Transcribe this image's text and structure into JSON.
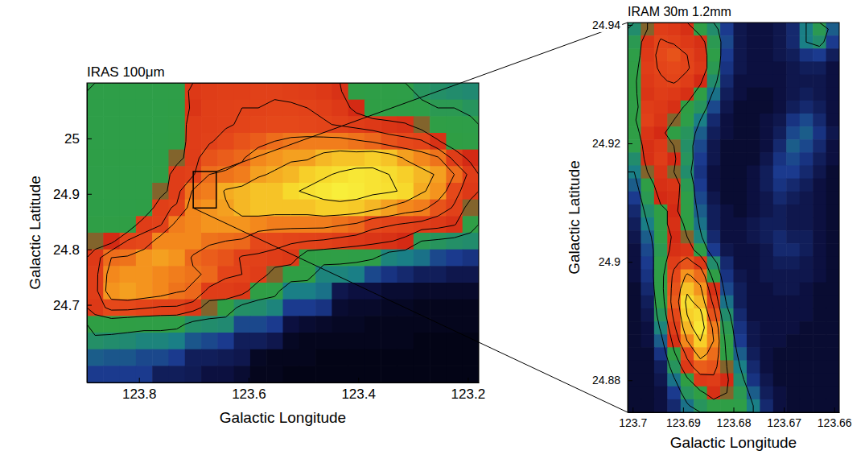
{
  "chart_data": [
    {
      "type": "heatmap",
      "title": "IRAS 100μm",
      "x_label": "Galactic Longitude",
      "y_label": "Galactic Latitude",
      "xlim": [
        123.895,
        123.18
      ],
      "ylim": [
        24.56,
        25.1
      ],
      "xticks": [
        123.8,
        123.6,
        123.4,
        123.2
      ],
      "yticks": [
        24.7,
        24.8,
        24.9,
        25
      ],
      "zlim": [
        0,
        100
      ],
      "contour_levels": [
        40,
        55,
        65,
        75,
        85,
        95
      ],
      "z": [
        [
          42,
          42,
          42,
          42,
          42,
          42,
          60,
          62,
          63,
          63,
          64,
          64,
          63,
          62,
          60,
          56,
          46,
          44,
          44,
          42,
          38,
          36,
          35,
          34
        ],
        [
          42,
          42,
          42,
          42,
          42,
          44,
          58,
          63,
          64,
          65,
          65,
          66,
          66,
          65,
          63,
          60,
          52,
          46,
          45,
          44,
          42,
          40,
          40,
          38
        ],
        [
          42,
          42,
          42,
          42,
          42,
          45,
          62,
          63,
          64,
          66,
          67,
          68,
          68,
          67,
          66,
          64,
          62,
          60,
          58,
          56,
          50,
          45,
          44,
          42
        ],
        [
          42,
          42,
          42,
          42,
          43,
          46,
          62,
          64,
          68,
          70,
          72,
          75,
          77,
          78,
          78,
          78,
          76,
          74,
          70,
          68,
          66,
          56,
          48,
          45
        ],
        [
          43,
          43,
          43,
          43,
          44,
          50,
          62,
          70,
          72,
          74,
          80,
          82,
          84,
          84,
          88,
          90,
          90,
          92,
          90,
          84,
          80,
          76,
          62,
          52
        ],
        [
          42,
          42,
          42,
          42,
          45,
          62,
          64,
          75,
          76,
          78,
          84,
          86,
          88,
          92,
          94,
          96,
          98,
          97,
          95,
          92,
          88,
          84,
          75,
          62
        ],
        [
          42,
          42,
          42,
          42,
          50,
          62,
          76,
          78,
          86,
          88,
          90,
          90,
          94,
          96,
          98,
          100,
          99,
          97,
          96,
          94,
          86,
          82,
          68,
          60
        ],
        [
          42,
          42,
          42,
          44,
          63,
          66,
          80,
          82,
          84,
          88,
          90,
          90,
          90,
          90,
          92,
          92,
          91,
          88,
          84,
          80,
          78,
          70,
          64,
          50
        ],
        [
          45,
          45,
          46,
          62,
          64,
          78,
          80,
          82,
          82,
          82,
          80,
          78,
          78,
          78,
          78,
          76,
          74,
          68,
          66,
          64,
          62,
          60,
          56,
          45
        ],
        [
          50,
          52,
          66,
          68,
          80,
          80,
          80,
          76,
          75,
          74,
          68,
          68,
          66,
          65,
          64,
          62,
          60,
          58,
          56,
          52,
          40,
          38,
          36,
          35
        ],
        [
          60,
          75,
          76,
          82,
          84,
          82,
          74,
          72,
          70,
          64,
          64,
          62,
          60,
          48,
          46,
          45,
          44,
          42,
          32,
          30,
          28,
          22,
          20,
          18
        ],
        [
          62,
          80,
          82,
          82,
          80,
          78,
          76,
          74,
          66,
          65,
          62,
          50,
          48,
          46,
          32,
          32,
          30,
          22,
          18,
          15,
          12,
          12,
          10,
          10
        ],
        [
          62,
          82,
          84,
          82,
          80,
          76,
          74,
          62,
          62,
          60,
          46,
          44,
          30,
          30,
          28,
          10,
          8,
          8,
          6,
          6,
          5,
          5,
          5,
          5
        ],
        [
          60,
          68,
          68,
          66,
          64,
          64,
          60,
          50,
          48,
          36,
          35,
          32,
          20,
          20,
          18,
          6,
          5,
          5,
          4,
          4,
          3,
          3,
          3,
          3
        ],
        [
          48,
          48,
          46,
          45,
          45,
          44,
          36,
          35,
          34,
          22,
          22,
          20,
          8,
          6,
          5,
          4,
          4,
          3,
          3,
          3,
          3,
          3,
          3,
          3
        ],
        [
          36,
          35,
          34,
          32,
          32,
          30,
          24,
          22,
          20,
          12,
          12,
          10,
          4,
          3,
          3,
          3,
          3,
          3,
          3,
          3,
          2,
          2,
          2,
          2
        ],
        [
          25,
          24,
          24,
          22,
          22,
          20,
          12,
          12,
          11,
          10,
          4,
          3,
          3,
          3,
          2,
          2,
          2,
          2,
          2,
          2,
          2,
          2,
          2,
          2
        ],
        [
          20,
          20,
          20,
          20,
          12,
          12,
          11,
          8,
          8,
          6,
          3,
          3,
          2,
          2,
          2,
          2,
          2,
          2,
          2,
          2,
          2,
          2,
          2,
          2
        ]
      ]
    },
    {
      "type": "heatmap",
      "title": "IRAM 30m 1.2mm",
      "x_label": "Galactic Longitude",
      "y_label": "Galactic Latitude",
      "xlim": [
        123.701,
        123.659
      ],
      "ylim": [
        24.8746,
        24.9404
      ],
      "xticks": [
        123.7,
        123.69,
        123.68,
        123.67,
        123.66
      ],
      "yticks": [
        24.88,
        24.9,
        24.92,
        24.94
      ],
      "zlim": [
        0,
        100
      ],
      "contour_levels": [
        30,
        50,
        65,
        80,
        92
      ],
      "z": [
        [
          35,
          50,
          62,
          60,
          55,
          45,
          35,
          20,
          10,
          8,
          8,
          10,
          15,
          30,
          40,
          25
        ],
        [
          40,
          58,
          66,
          64,
          60,
          55,
          40,
          22,
          10,
          8,
          8,
          10,
          15,
          30,
          35,
          20
        ],
        [
          42,
          60,
          68,
          70,
          65,
          58,
          42,
          20,
          10,
          8,
          8,
          10,
          12,
          18,
          20,
          12
        ],
        [
          45,
          62,
          66,
          68,
          66,
          60,
          40,
          18,
          10,
          8,
          8,
          8,
          10,
          12,
          12,
          8
        ],
        [
          48,
          60,
          64,
          66,
          62,
          52,
          35,
          15,
          8,
          8,
          8,
          8,
          10,
          10,
          10,
          8
        ],
        [
          48,
          58,
          62,
          60,
          55,
          45,
          28,
          12,
          8,
          6,
          6,
          8,
          10,
          12,
          10,
          8
        ],
        [
          45,
          62,
          60,
          55,
          48,
          38,
          22,
          10,
          6,
          6,
          6,
          8,
          12,
          15,
          12,
          8
        ],
        [
          48,
          64,
          58,
          50,
          42,
          30,
          15,
          8,
          6,
          6,
          8,
          10,
          18,
          22,
          15,
          8
        ],
        [
          45,
          58,
          52,
          46,
          38,
          25,
          12,
          8,
          6,
          6,
          8,
          12,
          22,
          25,
          18,
          10
        ],
        [
          42,
          55,
          60,
          50,
          36,
          22,
          10,
          6,
          6,
          6,
          8,
          15,
          25,
          22,
          15,
          8
        ],
        [
          35,
          55,
          62,
          52,
          38,
          20,
          10,
          6,
          6,
          6,
          10,
          18,
          22,
          18,
          12,
          8
        ],
        [
          30,
          50,
          58,
          50,
          35,
          18,
          8,
          6,
          6,
          8,
          12,
          20,
          20,
          15,
          10,
          6
        ],
        [
          25,
          45,
          55,
          58,
          40,
          20,
          8,
          6,
          6,
          8,
          12,
          18,
          15,
          12,
          8,
          6
        ],
        [
          20,
          40,
          52,
          55,
          42,
          22,
          10,
          6,
          6,
          8,
          10,
          15,
          12,
          10,
          8,
          6
        ],
        [
          15,
          35,
          48,
          52,
          45,
          25,
          12,
          8,
          6,
          8,
          10,
          12,
          10,
          10,
          8,
          6
        ],
        [
          12,
          30,
          45,
          55,
          48,
          28,
          12,
          8,
          8,
          10,
          12,
          12,
          10,
          10,
          8,
          6
        ],
        [
          10,
          25,
          42,
          52,
          50,
          32,
          15,
          8,
          8,
          10,
          12,
          15,
          12,
          12,
          8,
          6
        ],
        [
          8,
          22,
          40,
          55,
          58,
          42,
          20,
          10,
          8,
          8,
          10,
          15,
          15,
          12,
          8,
          6
        ],
        [
          8,
          20,
          42,
          62,
          70,
          60,
          35,
          15,
          8,
          8,
          10,
          12,
          12,
          10,
          8,
          6
        ],
        [
          8,
          18,
          45,
          68,
          82,
          75,
          45,
          18,
          10,
          8,
          10,
          10,
          10,
          10,
          8,
          6
        ],
        [
          6,
          15,
          45,
          70,
          90,
          82,
          55,
          22,
          12,
          8,
          8,
          10,
          10,
          8,
          6,
          6
        ],
        [
          6,
          12,
          42,
          72,
          95,
          88,
          62,
          28,
          12,
          8,
          8,
          8,
          8,
          8,
          6,
          6
        ],
        [
          6,
          10,
          38,
          68,
          92,
          95,
          70,
          35,
          15,
          8,
          8,
          8,
          8,
          8,
          6,
          6
        ],
        [
          6,
          8,
          32,
          62,
          88,
          98,
          78,
          40,
          18,
          10,
          8,
          8,
          8,
          6,
          6,
          6
        ],
        [
          6,
          8,
          25,
          55,
          80,
          92,
          80,
          45,
          20,
          10,
          8,
          8,
          6,
          6,
          6,
          6
        ],
        [
          6,
          6,
          18,
          48,
          68,
          85,
          75,
          48,
          25,
          12,
          8,
          6,
          6,
          6,
          6,
          6
        ],
        [
          6,
          6,
          12,
          38,
          60,
          72,
          70,
          50,
          30,
          15,
          8,
          6,
          6,
          6,
          6,
          6
        ],
        [
          6,
          6,
          10,
          28,
          48,
          60,
          62,
          52,
          35,
          18,
          10,
          6,
          6,
          6,
          6,
          6
        ],
        [
          6,
          6,
          8,
          20,
          38,
          48,
          55,
          50,
          40,
          25,
          12,
          8,
          6,
          6,
          6,
          6
        ],
        [
          6,
          6,
          8,
          15,
          28,
          38,
          45,
          45,
          42,
          30,
          15,
          8,
          6,
          6,
          6,
          6
        ]
      ]
    }
  ]
}
